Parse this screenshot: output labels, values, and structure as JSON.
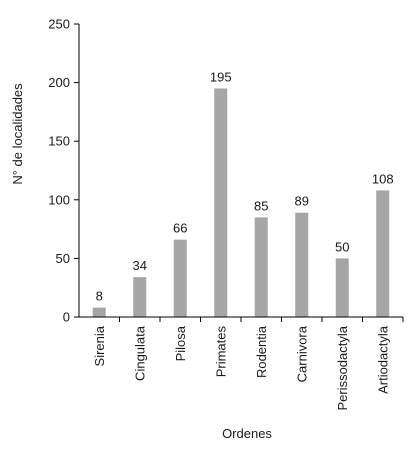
{
  "chart_data": {
    "type": "bar",
    "title": "",
    "xlabel": "Ordenes",
    "ylabel": "N° de localidades",
    "categories": [
      "Sirenia",
      "Cingulata",
      "Pilosa",
      "Primates",
      "Rodentia",
      "Carnivora",
      "Perissodactyla",
      "Artiodactyla"
    ],
    "values": [
      8,
      34,
      66,
      195,
      85,
      89,
      50,
      108
    ],
    "data_labels": [
      "8",
      "34",
      "66",
      "195",
      "85",
      "89",
      "50",
      "108"
    ],
    "ylim": [
      0,
      250
    ],
    "yticks": [
      0,
      50,
      100,
      150,
      200,
      250
    ],
    "ytick_labels": [
      "0",
      "50",
      "100",
      "150",
      "200",
      "250"
    ],
    "grid": false,
    "legend": "none",
    "bar_color": "#a6a6a6",
    "axis_color": "#000000"
  }
}
